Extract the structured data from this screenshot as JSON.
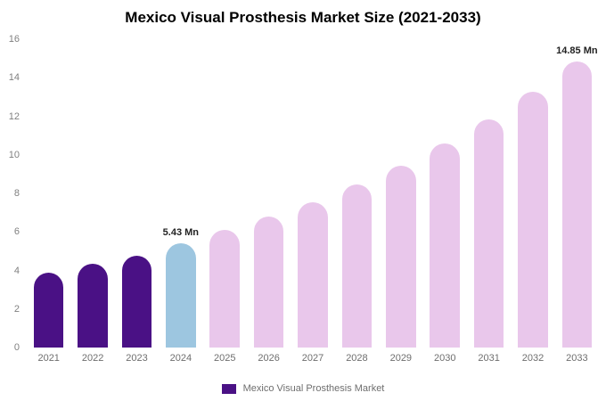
{
  "chart_data": {
    "type": "bar",
    "title": "Mexico Visual Prosthesis Market Size (2021-2033)",
    "categories": [
      "2021",
      "2022",
      "2023",
      "2024",
      "2025",
      "2026",
      "2027",
      "2028",
      "2029",
      "2030",
      "2031",
      "2032",
      "2033"
    ],
    "values": [
      3.9,
      4.35,
      4.75,
      5.43,
      6.1,
      6.8,
      7.55,
      8.45,
      9.45,
      10.6,
      11.85,
      13.25,
      14.85
    ],
    "bar_colors": [
      "#4a1185",
      "#4a1185",
      "#4a1185",
      "#9dc6e0",
      "#e9c7eb",
      "#e9c7eb",
      "#e9c7eb",
      "#e9c7eb",
      "#e9c7eb",
      "#e9c7eb",
      "#e9c7eb",
      "#e9c7eb",
      "#e9c7eb"
    ],
    "value_labels": {
      "3": "5.43 Mn",
      "12": "14.85 Mn"
    },
    "xlabel": "",
    "ylabel": "",
    "ylim": [
      0,
      16
    ],
    "ytick_step": 2,
    "grid": false,
    "legend_position": "bottom",
    "legend": {
      "label": "Mexico Visual Prosthesis Market",
      "color": "#4a1185"
    }
  }
}
